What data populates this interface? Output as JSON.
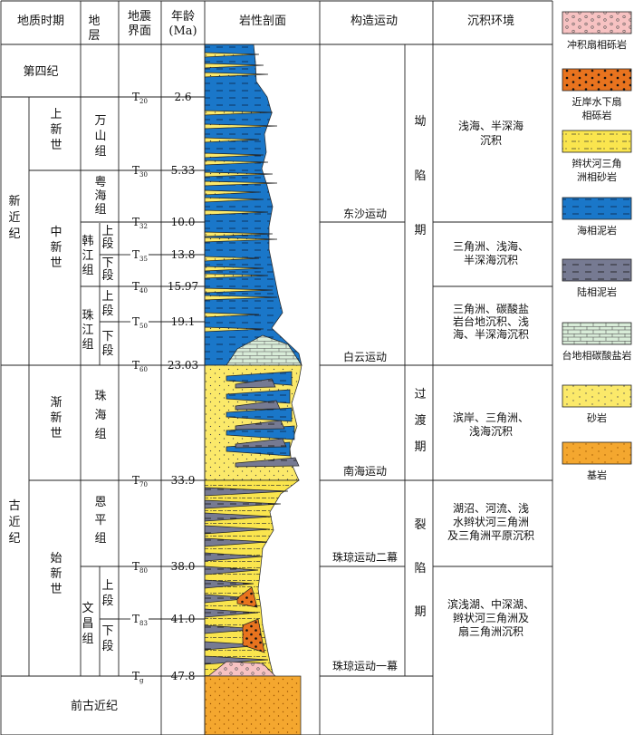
{
  "headers": {
    "period": "地质时期",
    "stratum": [
      "地",
      "层"
    ],
    "seismic": [
      "地震",
      "界面"
    ],
    "age": [
      "年龄",
      "(Ma)"
    ],
    "lithology": "岩性剖面",
    "tectonic": "构造运动",
    "environment": "沉积环境"
  },
  "periods": {
    "neogene": [
      "新",
      "近",
      "纪"
    ],
    "paleogene": [
      "古",
      "近",
      "纪"
    ],
    "quaternary": "第四纪",
    "pre_paleogene": "前古近纪"
  },
  "epochs": {
    "pliocene": [
      "上",
      "新",
      "世"
    ],
    "miocene": [
      "中",
      "新",
      "世"
    ],
    "oligocene": [
      "渐",
      "新",
      "世"
    ],
    "eocene": [
      "始",
      "新",
      "世"
    ]
  },
  "formations": {
    "wanshan": [
      "万",
      "山",
      "组"
    ],
    "yuehai": [
      "粤",
      "海",
      "组"
    ],
    "hanjiang": [
      "韩",
      "江",
      "组"
    ],
    "zhujiang": [
      "珠",
      "江",
      "组"
    ],
    "zhuhai": [
      "珠",
      "海",
      "组"
    ],
    "enping": [
      "恩",
      "平",
      "组"
    ],
    "wenchang": [
      "文",
      "昌",
      "组"
    ]
  },
  "members": {
    "upper": [
      "上",
      "段"
    ],
    "lower": [
      "下",
      "段"
    ]
  },
  "seismic_interfaces": [
    {
      "main": "T",
      "sub": "20",
      "age": "2.6"
    },
    {
      "main": "T",
      "sub": "30",
      "age": "5.33"
    },
    {
      "main": "T",
      "sub": "32",
      "age": "10.0"
    },
    {
      "main": "T",
      "sub": "35",
      "age": "13.8"
    },
    {
      "main": "T",
      "sub": "40",
      "age": "15.97"
    },
    {
      "main": "T",
      "sub": "50",
      "age": "19.1"
    },
    {
      "main": "T",
      "sub": "60",
      "age": "23.03"
    },
    {
      "main": "T",
      "sub": "70",
      "age": "33.9"
    },
    {
      "main": "T",
      "sub": "80",
      "age": "38.0"
    },
    {
      "main": "T",
      "sub": "83",
      "age": "41.0"
    },
    {
      "main": "T",
      "sub": "g",
      "age": "47.8"
    }
  ],
  "tectonic_events": [
    "东沙运动",
    "白云运动",
    "南海运动",
    "珠琼运动二幕",
    "珠琼运动一幕"
  ],
  "tectonic_phases": {
    "depression": [
      "坳",
      "陷",
      "期"
    ],
    "transition": [
      "过",
      "渡",
      "期"
    ],
    "rift": [
      "裂",
      "陷",
      "期"
    ]
  },
  "environments": [
    [
      "浅海、半深海",
      "沉积"
    ],
    [
      "三角洲、浅海、",
      "半深海沉积"
    ],
    [
      "三角洲、碳酸盐",
      "岩台地沉积、浅",
      "海、半深海沉积"
    ],
    [
      "滨岸、三角洲、",
      "浅海沉积"
    ],
    [
      "湖沼、河流、浅",
      "水辫状河三角洲",
      "及三角洲平原沉积"
    ],
    [
      "滨浅湖、中深湖、",
      "辫状河三角洲及",
      "扇三角洲沉积"
    ]
  ],
  "legend": [
    {
      "label": [
        "冲积扇相砾岩"
      ],
      "fill": "#f7c2c2",
      "pattern": "circles",
      "ink": "#555555"
    },
    {
      "label": [
        "近岸水下扇",
        "相砾岩"
      ],
      "fill": "#e8731e",
      "pattern": "dots-big",
      "ink": "#111111"
    },
    {
      "label": [
        "辫状河三角",
        "洲相砂岩"
      ],
      "fill": "#fae54e",
      "pattern": "dashdot",
      "ink": "#333333"
    },
    {
      "label": [
        "海相泥岩"
      ],
      "fill": "#1a77c9",
      "pattern": "dash",
      "ink": "#0d2c55"
    },
    {
      "label": [
        "陆相泥岩"
      ],
      "fill": "#767a92",
      "pattern": "dash",
      "ink": "#222222"
    },
    {
      "label": [
        "台地相碳酸盐岩"
      ],
      "fill": "#d8ecd8",
      "pattern": "bricks",
      "ink": "#555555"
    },
    {
      "label": [
        "砂岩"
      ],
      "fill": "#fbe96a",
      "pattern": "dots",
      "ink": "#555555"
    },
    {
      "label": [
        "基岩"
      ],
      "fill": "#f4a72f",
      "pattern": "dots",
      "ink": "#a05800"
    }
  ],
  "colors": {
    "marine_mudstone": "#1a77c9",
    "continental_mudstone": "#767a92",
    "sandstone": "#fbe96a",
    "carbonate": "#d8ecd8",
    "bedrock": "#f4a72f",
    "fan_conglomerate": "#f7c2c2",
    "nearshore_conglomerate": "#e8731e",
    "braided_delta_sandstone": "#fae54e"
  }
}
